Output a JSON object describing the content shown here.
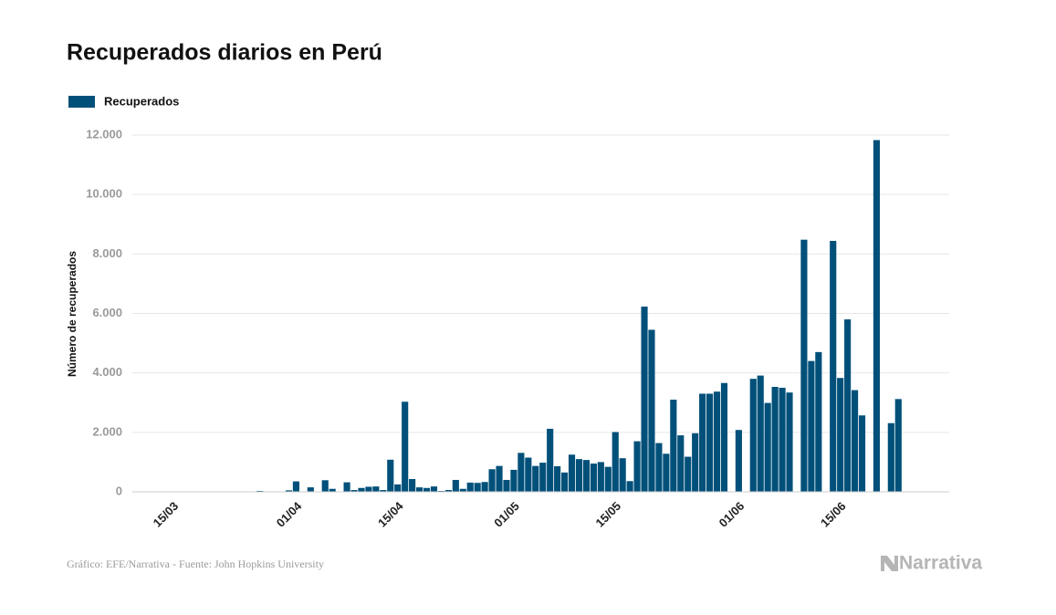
{
  "chart_data": {
    "type": "bar",
    "title": "Recuperados diarios en Perú",
    "y_label": "Número de recuperados",
    "source": "Gráfico: EFE/Narrativa - Fuente: John Hopkins University",
    "brand": "Narrativa",
    "legend": "top-left",
    "grid": true,
    "categories": [
      null,
      null,
      null,
      null,
      null,
      null,
      "15/03",
      null,
      null,
      null,
      null,
      null,
      null,
      null,
      null,
      null,
      null,
      null,
      null,
      null,
      null,
      null,
      null,
      "01/04",
      null,
      null,
      null,
      null,
      null,
      null,
      null,
      null,
      null,
      null,
      null,
      null,
      null,
      "15/04",
      null,
      null,
      null,
      null,
      null,
      null,
      null,
      null,
      null,
      null,
      null,
      null,
      null,
      null,
      null,
      "01/05",
      null,
      null,
      null,
      null,
      null,
      null,
      null,
      null,
      null,
      null,
      null,
      null,
      null,
      "15/05",
      null,
      null,
      null,
      null,
      null,
      null,
      null,
      null,
      null,
      null,
      null,
      null,
      null,
      null,
      null,
      null,
      "01/06",
      null,
      null,
      null,
      null,
      null,
      null,
      null,
      null,
      null,
      null,
      null,
      null,
      null,
      "15/06",
      null,
      null,
      null,
      null,
      null,
      null,
      null,
      null
    ],
    "series": [
      {
        "name": "Recuperados",
        "color": "#00507a",
        "values": [
          0,
          0,
          0,
          0,
          0,
          0,
          1,
          1,
          1,
          1,
          1,
          1,
          2,
          2,
          2,
          2,
          2,
          3,
          30,
          5,
          5,
          5,
          50,
          350,
          10,
          150,
          10,
          390,
          100,
          10,
          320,
          60,
          130,
          170,
          180,
          60,
          1080,
          250,
          3030,
          430,
          150,
          130,
          180,
          30,
          60,
          400,
          100,
          310,
          300,
          330,
          760,
          870,
          400,
          740,
          1310,
          1150,
          870,
          980,
          2120,
          860,
          650,
          1250,
          1100,
          1070,
          950,
          1000,
          840,
          2010,
          1130,
          360,
          1700,
          6230,
          5450,
          1640,
          1280,
          3100,
          1900,
          1180,
          1970,
          3300,
          3300,
          3370,
          3660,
          0,
          2080,
          0,
          3800,
          3910,
          2990,
          3530,
          3500,
          3340,
          0,
          8480,
          4400,
          4700,
          0,
          8440,
          3830,
          5800,
          3420,
          2570,
          0,
          11830,
          0,
          2310,
          3120
        ]
      }
    ],
    "ylim": [
      0,
      12000
    ],
    "yticks": [
      0,
      {
        "value": 2000,
        "label": "2.000"
      },
      {
        "value": 4000,
        "label": "4.000"
      },
      {
        "value": 6000,
        "label": "6.000"
      },
      {
        "value": 8000,
        "label": "8.000"
      },
      {
        "value": 10000,
        "label": "10.000"
      },
      {
        "value": 12000,
        "label": "12.000"
      }
    ]
  }
}
